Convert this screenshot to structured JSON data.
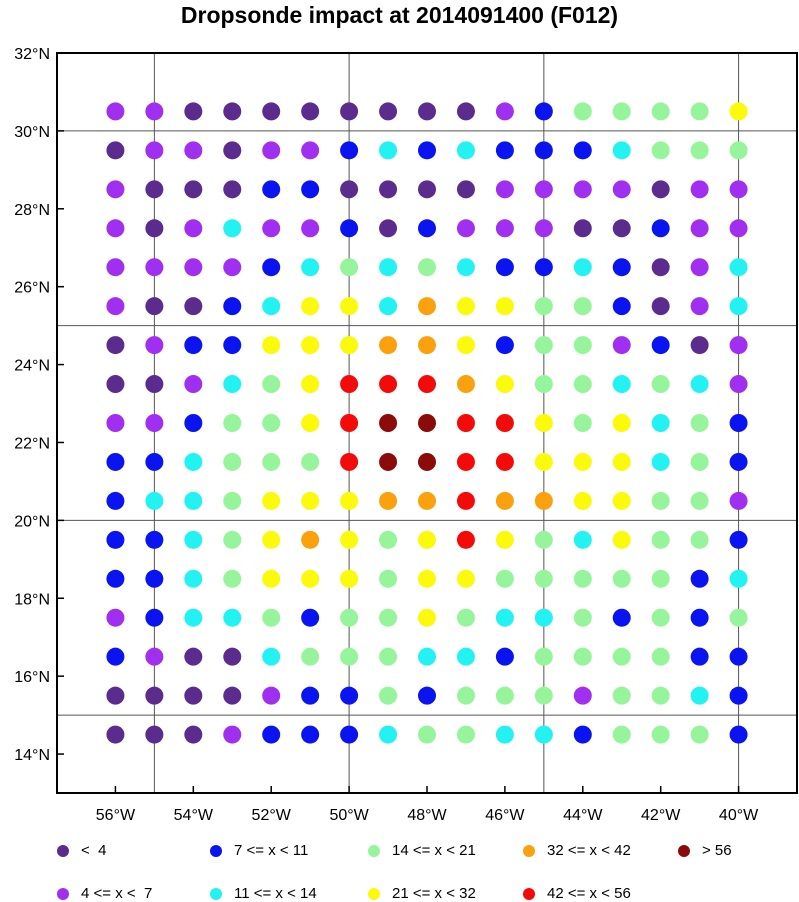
{
  "chart_data": {
    "type": "scatter",
    "title": "Dropsonde impact at 2014091400 (F012)",
    "xlim": [
      -57.5,
      -38.5
    ],
    "ylim": [
      13,
      32
    ],
    "x_ticks": [
      {
        "value": -56,
        "label": "56°W"
      },
      {
        "value": -54,
        "label": "54°W"
      },
      {
        "value": -52,
        "label": "52°W"
      },
      {
        "value": -50,
        "label": "50°W"
      },
      {
        "value": -48,
        "label": "48°W"
      },
      {
        "value": -46,
        "label": "46°W"
      },
      {
        "value": -44,
        "label": "44°W"
      },
      {
        "value": -42,
        "label": "42°W"
      },
      {
        "value": -40,
        "label": "40°W"
      }
    ],
    "y_ticks": [
      {
        "value": 14,
        "label": "14°N"
      },
      {
        "value": 16,
        "label": "16°N"
      },
      {
        "value": 18,
        "label": "18°N"
      },
      {
        "value": 20,
        "label": "20°N"
      },
      {
        "value": 22,
        "label": "22°N"
      },
      {
        "value": 24,
        "label": "24°N"
      },
      {
        "value": 26,
        "label": "26°N"
      },
      {
        "value": 28,
        "label": "28°N"
      },
      {
        "value": 30,
        "label": "30°N"
      },
      {
        "value": 32,
        "label": "32°N"
      }
    ],
    "grid_lines_x": [
      -55,
      -50,
      -45,
      -40
    ],
    "grid_lines_y": [
      15,
      20,
      25,
      30
    ],
    "categories": [
      {
        "code": 0,
        "label": "<  4",
        "color": "#5b2c8e"
      },
      {
        "code": 1,
        "label": "4 <= x <  7",
        "color": "#a02ff0"
      },
      {
        "code": 2,
        "label": "7 <= x < 11",
        "color": "#0a14f0"
      },
      {
        "code": 3,
        "label": "11 <= x < 14",
        "color": "#22f2f2"
      },
      {
        "code": 4,
        "label": "14 <= x < 21",
        "color": "#96f59a"
      },
      {
        "code": 5,
        "label": "21 <= x < 32",
        "color": "#fafa0a"
      },
      {
        "code": 6,
        "label": "32 <= x < 42",
        "color": "#fba10d"
      },
      {
        "code": 7,
        "label": "42 <= x < 56",
        "color": "#f50a0a"
      },
      {
        "code": 8,
        "label": "> 56",
        "color": "#8b0a0a"
      }
    ],
    "legend_order": [
      0,
      2,
      4,
      6,
      8,
      1,
      3,
      5,
      7
    ],
    "legend_position": "bottom",
    "points": {
      "x": [
        -56,
        -55,
        -54,
        -53,
        -52,
        -51,
        -50,
        -49,
        -48,
        -47,
        -46,
        -45,
        -44,
        -43,
        -42,
        -41,
        -40
      ],
      "y": [
        30.5,
        29.5,
        28.5,
        27.5,
        26.5,
        25.5,
        24.5,
        23.5,
        22.5,
        21.5,
        20.5,
        19.5,
        18.5,
        17.5,
        16.5,
        15.5,
        14.5
      ],
      "category_grid": [
        [
          1,
          1,
          0,
          0,
          0,
          0,
          0,
          0,
          0,
          0,
          1,
          2,
          4,
          4,
          4,
          4,
          5
        ],
        [
          0,
          1,
          1,
          0,
          1,
          1,
          2,
          3,
          2,
          3,
          2,
          2,
          2,
          3,
          4,
          4,
          4
        ],
        [
          1,
          0,
          0,
          0,
          2,
          2,
          0,
          0,
          0,
          0,
          1,
          1,
          1,
          1,
          0,
          1,
          1
        ],
        [
          1,
          0,
          1,
          3,
          1,
          1,
          2,
          0,
          2,
          1,
          1,
          1,
          0,
          0,
          2,
          1,
          1
        ],
        [
          1,
          1,
          1,
          1,
          2,
          3,
          4,
          3,
          4,
          3,
          2,
          2,
          3,
          2,
          0,
          1,
          3
        ],
        [
          1,
          0,
          0,
          2,
          3,
          5,
          5,
          3,
          6,
          5,
          5,
          4,
          4,
          2,
          0,
          1,
          3
        ],
        [
          0,
          1,
          2,
          2,
          5,
          5,
          5,
          6,
          6,
          5,
          2,
          4,
          4,
          1,
          2,
          0,
          1
        ],
        [
          0,
          0,
          1,
          3,
          4,
          5,
          7,
          7,
          7,
          6,
          5,
          4,
          4,
          3,
          4,
          3,
          1
        ],
        [
          1,
          1,
          2,
          4,
          4,
          5,
          7,
          8,
          8,
          7,
          7,
          5,
          4,
          5,
          3,
          4,
          2
        ],
        [
          2,
          2,
          3,
          4,
          4,
          4,
          7,
          8,
          8,
          7,
          7,
          5,
          5,
          5,
          3,
          4,
          2
        ],
        [
          2,
          3,
          3,
          4,
          5,
          5,
          5,
          6,
          6,
          7,
          6,
          6,
          5,
          5,
          4,
          4,
          1
        ],
        [
          2,
          2,
          3,
          4,
          5,
          6,
          5,
          4,
          5,
          7,
          5,
          4,
          3,
          5,
          4,
          4,
          2
        ],
        [
          2,
          2,
          3,
          4,
          5,
          5,
          5,
          4,
          5,
          5,
          4,
          4,
          4,
          4,
          4,
          2,
          3
        ],
        [
          1,
          2,
          3,
          3,
          4,
          2,
          4,
          4,
          5,
          4,
          3,
          3,
          4,
          2,
          4,
          2,
          4
        ],
        [
          2,
          1,
          0,
          0,
          3,
          4,
          4,
          4,
          3,
          3,
          2,
          4,
          4,
          4,
          4,
          2,
          2
        ],
        [
          0,
          0,
          0,
          0,
          1,
          2,
          2,
          4,
          2,
          4,
          4,
          4,
          1,
          4,
          4,
          3,
          2
        ],
        [
          0,
          0,
          0,
          1,
          2,
          2,
          2,
          3,
          4,
          4,
          3,
          3,
          2,
          4,
          4,
          4,
          2
        ]
      ]
    }
  }
}
